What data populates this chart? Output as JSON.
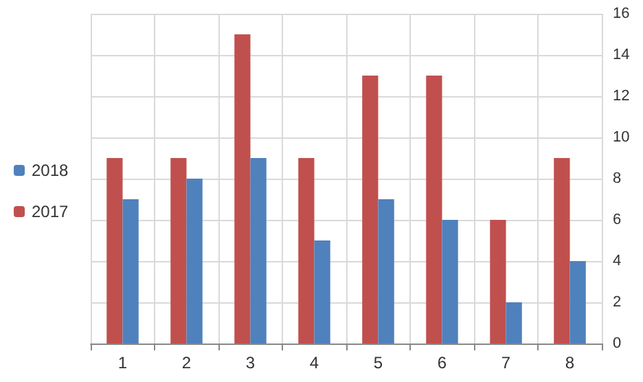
{
  "chart_data": {
    "type": "bar",
    "categories": [
      "1",
      "2",
      "3",
      "4",
      "5",
      "6",
      "7",
      "8"
    ],
    "series": [
      {
        "name": "2017",
        "color": "#c0504d",
        "values": [
          9,
          9,
          15,
          9,
          13,
          13,
          6,
          9
        ]
      },
      {
        "name": "2018",
        "color": "#4f81bd",
        "values": [
          7,
          8,
          9,
          5,
          7,
          6,
          2,
          4
        ]
      }
    ],
    "ylim": [
      0,
      16
    ],
    "yticks": [
      0,
      2,
      4,
      6,
      8,
      10,
      12,
      14,
      16
    ],
    "grid": true,
    "legend": "left"
  }
}
